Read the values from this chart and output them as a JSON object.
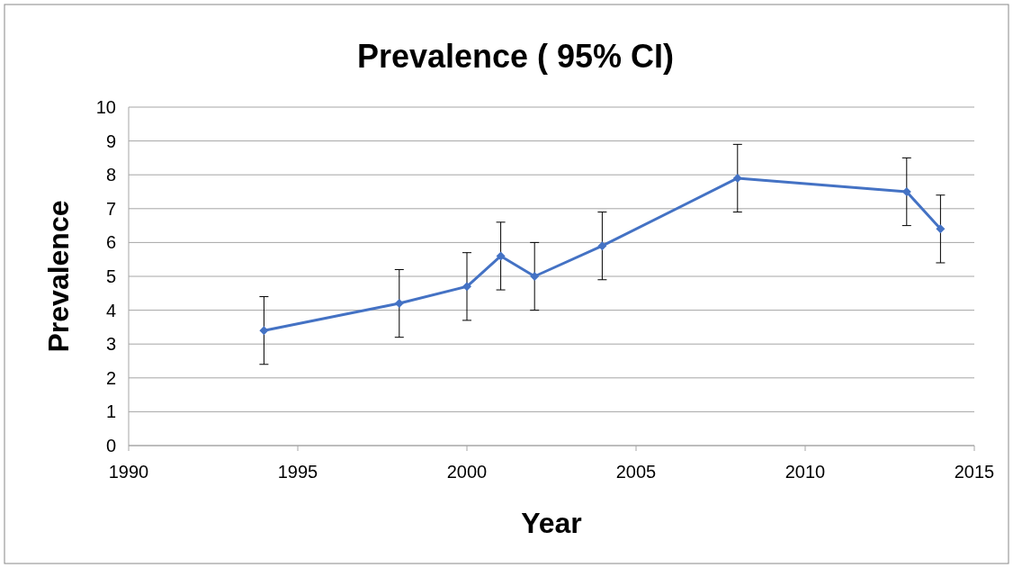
{
  "chart_data": {
    "type": "line",
    "title": "Prevalence ( 95% CI)",
    "xlabel": "Year",
    "ylabel": "Prevalence",
    "x": [
      1994,
      1998,
      2000,
      2001,
      2002,
      2004,
      2008,
      2013,
      2014
    ],
    "series": [
      {
        "color": "#4472c4",
        "values": [
          3.4,
          4.2,
          4.7,
          5.6,
          5.0,
          5.9,
          7.9,
          7.5,
          6.4
        ],
        "errors": [
          1,
          1,
          1,
          1,
          1,
          1,
          1,
          1,
          1
        ]
      }
    ],
    "xlim": [
      1990,
      2015
    ],
    "xticks": [
      1990,
      1995,
      2000,
      2005,
      2010,
      2015
    ],
    "ylim": [
      0,
      10
    ],
    "yticks": [
      0,
      1,
      2,
      3,
      4,
      5,
      6,
      7,
      8,
      9,
      10
    ],
    "grid": "y",
    "marker": "diamond",
    "line_style": "solid"
  }
}
